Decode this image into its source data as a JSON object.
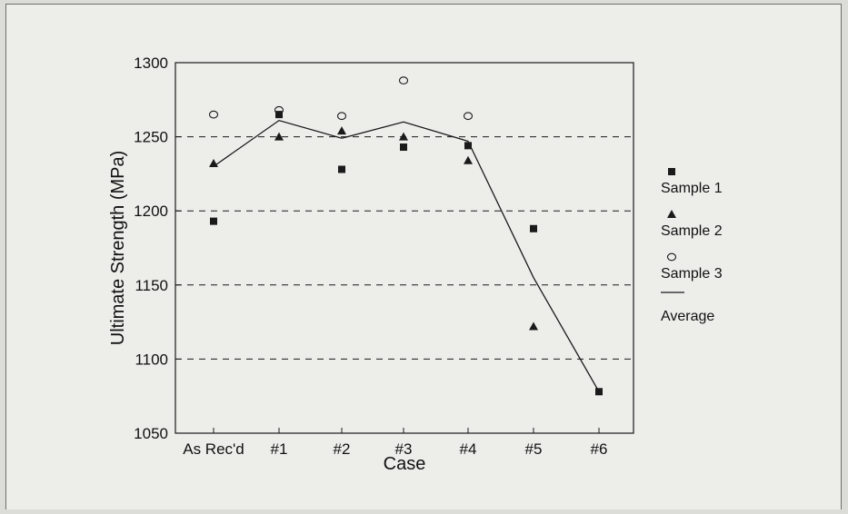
{
  "chart_data": {
    "type": "scatter",
    "xlabel": "Case",
    "ylabel": "Ultimate Strength (MPa)",
    "categories": [
      "As Rec'd",
      "#1",
      "#2",
      "#3",
      "#4",
      "#5",
      "#6"
    ],
    "ylim": [
      1050,
      1300
    ],
    "yticks": [
      1050,
      1100,
      1150,
      1200,
      1250,
      1300
    ],
    "grid_lines_y": [
      1100,
      1150,
      1200,
      1250
    ],
    "series": [
      {
        "name": "Sample 1",
        "marker": "square",
        "values": [
          1193,
          1265,
          1228,
          1243,
          1244,
          1188,
          1078
        ]
      },
      {
        "name": "Sample 2",
        "marker": "triangle",
        "values": [
          1232,
          1250,
          1254,
          1250,
          1234,
          1122,
          null
        ]
      },
      {
        "name": "Sample 3",
        "marker": "circle",
        "values": [
          1265,
          1268,
          1264,
          1288,
          1264,
          null,
          null
        ]
      },
      {
        "name": "Average",
        "marker": "line",
        "values": [
          1230,
          1261,
          1249,
          1260,
          1247,
          1155,
          1078
        ]
      }
    ],
    "legend_position": "right",
    "colors": {
      "ink": "#1a1a1a",
      "background": "#ededea"
    }
  }
}
